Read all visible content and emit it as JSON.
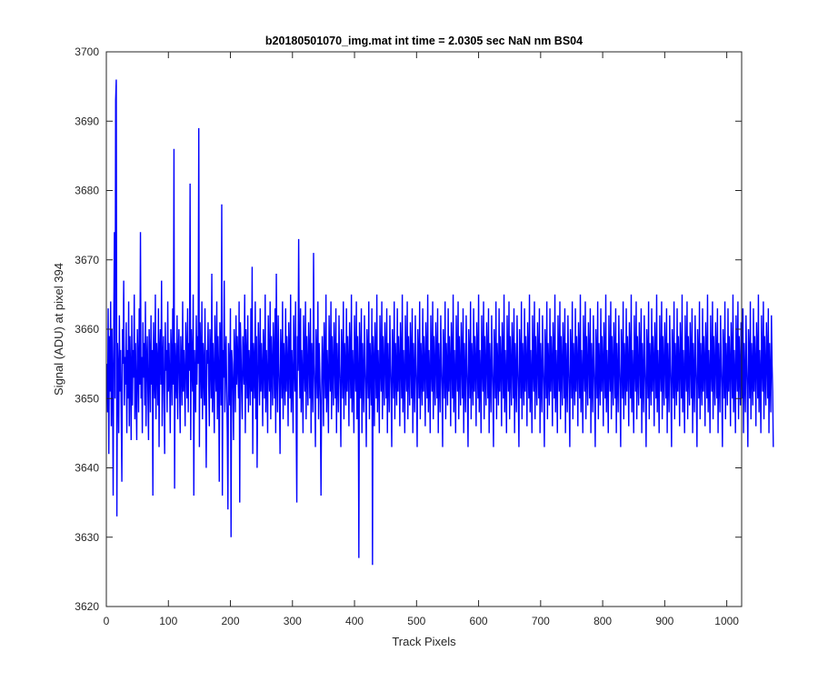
{
  "chart_data": {
    "type": "line",
    "title": "b20180501070_img.mat int time = 2.0305 sec  NaN nm BS04",
    "xlabel": "Track Pixels",
    "ylabel": "Signal (ADU) at pixel 394",
    "xlim": [
      0,
      1024
    ],
    "ylim": [
      3620,
      3700
    ],
    "xticks": [
      0,
      100,
      200,
      300,
      400,
      500,
      600,
      700,
      800,
      900,
      1000
    ],
    "yticks": [
      3620,
      3630,
      3640,
      3650,
      3660,
      3670,
      3680,
      3690,
      3700
    ],
    "grid": false,
    "legend": "none",
    "series_color": "#0000ff",
    "series": [
      {
        "x_start": 1,
        "x_step": 1,
        "values": [
          3655,
          3648,
          3663,
          3642,
          3659,
          3651,
          3664,
          3646,
          3660,
          3653,
          3636,
          3661,
          3674,
          3650,
          3693,
          3696,
          3633,
          3658,
          3654,
          3645,
          3662,
          3651,
          3657,
          3648,
          3638,
          3660,
          3655,
          3667,
          3649,
          3656,
          3652,
          3661,
          3645,
          3657,
          3650,
          3664,
          3646,
          3659,
          3654,
          3644,
          3662,
          3649,
          3657,
          3653,
          3665,
          3647,
          3658,
          3651,
          3644,
          3660,
          3655,
          3648,
          3663,
          3652,
          3674,
          3650,
          3656,
          3645,
          3661,
          3653,
          3658,
          3649,
          3664,
          3646,
          3655,
          3659,
          3651,
          3644,
          3660,
          3656,
          3648,
          3662,
          3652,
          3657,
          3636,
          3661,
          3654,
          3650,
          3665,
          3647,
          3658,
          3655,
          3649,
          3663,
          3643,
          3657,
          3660,
          3652,
          3667,
          3646,
          3655,
          3659,
          3650,
          3642,
          3661,
          3654,
          3657,
          3648,
          3664,
          3651,
          3658,
          3653,
          3645,
          3660,
          3656,
          3649,
          3663,
          3652,
          3686,
          3637,
          3658,
          3654,
          3650,
          3662,
          3647,
          3656,
          3660,
          3652,
          3645,
          3659,
          3655,
          3649,
          3664,
          3651,
          3657,
          3653,
          3646,
          3661,
          3656,
          3650,
          3663,
          3648,
          3658,
          3654,
          3681,
          3644,
          3660,
          3655,
          3651,
          3665,
          3636,
          3657,
          3653,
          3648,
          3662,
          3652,
          3659,
          3655,
          3689,
          3643,
          3661,
          3656,
          3650,
          3664,
          3647,
          3658,
          3654,
          3649,
          3663,
          3651,
          3640,
          3657,
          3655,
          3661,
          3652,
          3646,
          3660,
          3656,
          3650,
          3668,
          3648,
          3658,
          3653,
          3645,
          3662,
          3655,
          3651,
          3664,
          3647,
          3659,
          3654,
          3638,
          3661,
          3656,
          3649,
          3678,
          3636,
          3657,
          3653,
          3667,
          3648,
          3655,
          3659,
          3651,
          3645,
          3634,
          3658,
          3654,
          3649,
          3663,
          3630,
          3657,
          3655,
          3651,
          3644,
          3660,
          3656,
          3648,
          3662,
          3652,
          3659,
          3655,
          3650,
          3664,
          3635,
          3661,
          3657,
          3651,
          3647,
          3659,
          3655,
          3652,
          3665,
          3645,
          3660,
          3656,
          3650,
          3662,
          3648,
          3657,
          3654,
          3649,
          3663,
          3651,
          3669,
          3642,
          3658,
          3655,
          3650,
          3664,
          3647,
          3659,
          3640,
          3652,
          3661,
          3655,
          3649,
          3663,
          3651,
          3658,
          3654,
          3646,
          3660,
          3656,
          3650,
          3665,
          3648,
          3657,
          3653,
          3645,
          3662,
          3655,
          3651,
          3664,
          3647,
          3659,
          3654,
          3649,
          3661,
          3656,
          3650,
          3663,
          3645,
          3668,
          3653,
          3648,
          3662,
          3655,
          3651,
          3642,
          3660,
          3656,
          3650,
          3664,
          3647,
          3658,
          3654,
          3649,
          3663,
          3651,
          3659,
          3655,
          3646,
          3661,
          3656,
          3650,
          3665,
          3648,
          3657,
          3653,
          3645,
          3662,
          3655,
          3651,
          3664,
          3647,
          3635,
          3659,
          3654,
          3673,
          3656,
          3650,
          3663,
          3648,
          3657,
          3653,
          3645,
          3662,
          3655,
          3651,
          3664,
          3647,
          3659,
          3654,
          3649,
          3661,
          3656,
          3650,
          3663,
          3645,
          3658,
          3653,
          3648,
          3671,
          3655,
          3651,
          3643,
          3660,
          3656,
          3650,
          3664,
          3647,
          3658,
          3654,
          3649,
          3636,
          3651,
          3659,
          3655,
          3646,
          3661,
          3656,
          3650,
          3665,
          3648,
          3657,
          3653,
          3645,
          3662,
          3655,
          3651,
          3664,
          3647,
          3659,
          3654,
          3649,
          3661,
          3656,
          3650,
          3663,
          3645,
          3658,
          3653,
          3648,
          3662,
          3655,
          3651,
          3643,
          3660,
          3656,
          3650,
          3664,
          3647,
          3658,
          3654,
          3649,
          3663,
          3651,
          3659,
          3655,
          3646,
          3661,
          3656,
          3650,
          3665,
          3648,
          3657,
          3653,
          3645,
          3662,
          3655,
          3651,
          3664,
          3647,
          3659,
          3654,
          3627,
          3661,
          3656,
          3650,
          3663,
          3645,
          3658,
          3653,
          3648,
          3662,
          3655,
          3651,
          3643,
          3660,
          3656,
          3650,
          3664,
          3647,
          3658,
          3654,
          3649,
          3663,
          3626,
          3659,
          3655,
          3646,
          3661,
          3656,
          3650,
          3665,
          3648,
          3657,
          3653,
          3645,
          3662,
          3655,
          3651,
          3664,
          3647,
          3659,
          3654,
          3649,
          3661,
          3656,
          3650,
          3663,
          3645,
          3658,
          3653,
          3648,
          3662,
          3655,
          3651,
          3643,
          3660,
          3656,
          3650,
          3664,
          3647,
          3658,
          3654,
          3649,
          3663,
          3651,
          3659,
          3655,
          3646,
          3661,
          3656,
          3650,
          3665,
          3648,
          3657,
          3653,
          3645,
          3662,
          3655,
          3651,
          3664,
          3647,
          3659,
          3654,
          3649,
          3661,
          3656,
          3650,
          3663,
          3645,
          3658,
          3653,
          3648,
          3662,
          3655,
          3651,
          3643,
          3660,
          3656,
          3650,
          3664,
          3647,
          3658,
          3654,
          3649,
          3663,
          3651,
          3659,
          3655,
          3646,
          3661,
          3656,
          3650,
          3665,
          3648,
          3657,
          3653,
          3645,
          3662,
          3655,
          3651,
          3664,
          3647,
          3659,
          3654,
          3649,
          3661,
          3656,
          3650,
          3663,
          3645,
          3658,
          3653,
          3648,
          3662,
          3655,
          3651,
          3643,
          3660,
          3656,
          3650,
          3664,
          3647,
          3658,
          3654,
          3649,
          3663,
          3651,
          3659,
          3655,
          3646,
          3661,
          3656,
          3650,
          3665,
          3648,
          3657,
          3653,
          3645,
          3662,
          3655,
          3651,
          3664,
          3647,
          3659,
          3654,
          3649,
          3661,
          3656,
          3650,
          3663,
          3645,
          3658,
          3653,
          3648,
          3662,
          3655,
          3651,
          3643,
          3660,
          3656,
          3650,
          3664,
          3647,
          3658,
          3654,
          3649,
          3663,
          3651,
          3659,
          3655,
          3646,
          3661,
          3656,
          3650,
          3665,
          3648,
          3657,
          3653,
          3645,
          3662,
          3655,
          3651,
          3664,
          3647,
          3659,
          3654,
          3649,
          3661,
          3656,
          3650,
          3663,
          3645,
          3658,
          3653,
          3648,
          3662,
          3655,
          3651,
          3643,
          3660,
          3656,
          3650,
          3664,
          3647,
          3658,
          3654,
          3649,
          3663,
          3651,
          3659,
          3655,
          3646,
          3661,
          3656,
          3650,
          3665,
          3648,
          3657,
          3653,
          3645,
          3662,
          3655,
          3651,
          3664,
          3647,
          3659,
          3654,
          3649,
          3661,
          3656,
          3650,
          3663,
          3645,
          3658,
          3653,
          3648,
          3662,
          3655,
          3651,
          3643,
          3660,
          3656,
          3650,
          3664,
          3647,
          3658,
          3654,
          3649,
          3663,
          3651,
          3659,
          3655,
          3646,
          3661,
          3656,
          3650,
          3665,
          3648,
          3657,
          3653,
          3645,
          3662,
          3655,
          3651,
          3664,
          3647,
          3659,
          3654,
          3649,
          3661,
          3656,
          3650,
          3663,
          3645,
          3658,
          3653,
          3648,
          3662,
          3655,
          3651,
          3643,
          3660,
          3656,
          3650,
          3664,
          3647,
          3658,
          3654,
          3649,
          3663,
          3651,
          3659,
          3655,
          3646,
          3661,
          3656,
          3650,
          3665,
          3648,
          3657,
          3653,
          3645,
          3662,
          3655,
          3651,
          3664,
          3647,
          3659,
          3654,
          3649,
          3661,
          3656,
          3650,
          3663,
          3645,
          3658,
          3653,
          3648,
          3662,
          3655,
          3651,
          3643,
          3660,
          3656,
          3650,
          3664,
          3647,
          3658,
          3654,
          3649,
          3663,
          3651,
          3659,
          3655,
          3646,
          3661,
          3656,
          3650,
          3665,
          3648,
          3657,
          3653,
          3645,
          3662,
          3655,
          3651,
          3664,
          3647,
          3659,
          3654,
          3649,
          3661,
          3656,
          3650,
          3663,
          3645,
          3658,
          3653,
          3648,
          3662,
          3655,
          3651,
          3643,
          3660,
          3656,
          3650,
          3664,
          3647,
          3658,
          3654,
          3649,
          3663,
          3651,
          3659,
          3655,
          3646,
          3661,
          3656,
          3650,
          3665,
          3648,
          3657,
          3653,
          3645,
          3662,
          3655,
          3651,
          3664,
          3647,
          3659,
          3654,
          3649,
          3661,
          3656,
          3650,
          3663,
          3645,
          3658,
          3653,
          3648,
          3662,
          3655,
          3651,
          3643,
          3660,
          3656,
          3650,
          3664,
          3647,
          3658,
          3654,
          3649,
          3663,
          3651,
          3659,
          3655,
          3646,
          3661,
          3656,
          3650,
          3665,
          3648,
          3657,
          3653,
          3645,
          3662,
          3655,
          3651,
          3664,
          3647,
          3659,
          3654,
          3649,
          3661,
          3656,
          3650,
          3663,
          3645,
          3658,
          3653,
          3648,
          3662,
          3655,
          3651,
          3643,
          3660,
          3656,
          3650,
          3664,
          3647,
          3658,
          3654,
          3649,
          3663,
          3651,
          3659,
          3655,
          3646,
          3661,
          3656,
          3650,
          3665,
          3648,
          3657,
          3653,
          3645,
          3662,
          3655,
          3651,
          3664,
          3647,
          3659,
          3654,
          3649,
          3661,
          3656,
          3650,
          3663,
          3645,
          3658,
          3653,
          3648,
          3662,
          3655,
          3651,
          3643,
          3660,
          3656,
          3650,
          3664,
          3647,
          3658,
          3654,
          3649,
          3663,
          3651,
          3659,
          3655,
          3646,
          3661,
          3656,
          3650,
          3665,
          3648,
          3657,
          3653,
          3645,
          3662,
          3655,
          3651,
          3664,
          3647,
          3659,
          3654,
          3649,
          3661,
          3656,
          3650,
          3663,
          3645,
          3658,
          3653,
          3648,
          3662,
          3655,
          3651,
          3643,
          3660,
          3656,
          3650,
          3664,
          3647,
          3658,
          3654,
          3649,
          3663,
          3651,
          3659,
          3655,
          3646,
          3661,
          3656,
          3650,
          3665,
          3648,
          3657,
          3653,
          3645,
          3662,
          3655,
          3651,
          3664,
          3647,
          3659,
          3654,
          3649,
          3661,
          3656,
          3650,
          3663,
          3645,
          3658,
          3653,
          3648,
          3662,
          3655,
          3651,
          3643,
          3660,
          3656,
          3650,
          3664,
          3647,
          3658,
          3654,
          3649,
          3663,
          3651,
          3659,
          3655,
          3646,
          3661,
          3656,
          3650,
          3665,
          3648,
          3657,
          3653,
          3645,
          3662,
          3655,
          3651,
          3664,
          3647,
          3659,
          3654,
          3649,
          3661,
          3656,
          3650,
          3663,
          3645,
          3658,
          3653,
          3648,
          3662,
          3655,
          3651,
          3643,
          3660,
          3656,
          3650,
          3664,
          3647,
          3658,
          3654,
          3649,
          3663,
          3651,
          3659,
          3655,
          3646,
          3661,
          3656,
          3650,
          3665,
          3648,
          3657,
          3653,
          3645,
          3662,
          3655,
          3651,
          3664,
          3647,
          3659,
          3654,
          3649,
          3661,
          3656,
          3650,
          3663,
          3645,
          3658,
          3653,
          3648,
          3662,
          3655,
          3651,
          3643
        ]
      }
    ]
  }
}
